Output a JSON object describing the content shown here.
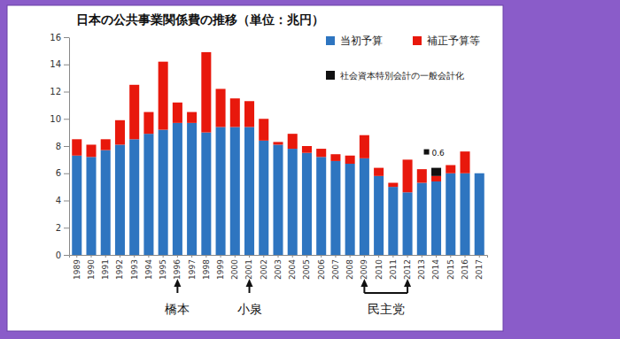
{
  "chart_data": {
    "type": "bar",
    "title": "日本の公共事業関係費の推移（単位：兆円）",
    "stacked": true,
    "grid": false,
    "legend": "upper right",
    "categories": [
      "1989",
      "1990",
      "1991",
      "1992",
      "1993",
      "1994",
      "1995",
      "1996",
      "1997",
      "1998",
      "1999",
      "2000",
      "2001",
      "2002",
      "2003",
      "2004",
      "2005",
      "2006",
      "2007",
      "2008",
      "2009",
      "2010",
      "2011",
      "2012",
      "2013",
      "2014",
      "2015",
      "2016",
      "2017"
    ],
    "series": [
      {
        "name": "当初予算",
        "color": "#2e75c0",
        "values": [
          7.3,
          7.2,
          7.7,
          8.1,
          8.5,
          8.9,
          9.2,
          9.7,
          9.7,
          9.0,
          9.4,
          9.4,
          9.4,
          8.4,
          8.1,
          7.8,
          7.5,
          7.2,
          6.9,
          6.7,
          7.1,
          5.8,
          5.0,
          4.6,
          5.3,
          5.4,
          6.0,
          6.0,
          6.0
        ]
      },
      {
        "name": "補正予算等",
        "color": "#e8180c",
        "values": [
          1.2,
          0.9,
          0.8,
          1.8,
          4.0,
          1.6,
          5.0,
          1.5,
          0.8,
          5.9,
          2.8,
          2.1,
          1.9,
          1.6,
          0.2,
          1.1,
          0.5,
          0.6,
          0.5,
          0.6,
          1.7,
          0.6,
          0.3,
          2.4,
          1.0,
          0.4,
          0.6,
          1.6,
          0
        ]
      },
      {
        "name": "社会資本特別会計の一般会計化",
        "color": "#111111",
        "data_labels": true,
        "values": [
          null,
          null,
          null,
          null,
          null,
          null,
          null,
          null,
          null,
          null,
          null,
          null,
          null,
          null,
          null,
          null,
          null,
          null,
          null,
          null,
          null,
          null,
          null,
          null,
          null,
          0.6,
          null,
          null,
          null
        ]
      }
    ],
    "ylim": [
      0,
      16
    ],
    "yticks": [
      0,
      2,
      4,
      6,
      8,
      10,
      12,
      14,
      16
    ],
    "annotations": [
      {
        "text": "橋本",
        "x": "1996"
      },
      {
        "text": "小泉",
        "x": "2001"
      },
      {
        "text": "民主党",
        "x": [
          "2009",
          "2012"
        ]
      }
    ]
  }
}
